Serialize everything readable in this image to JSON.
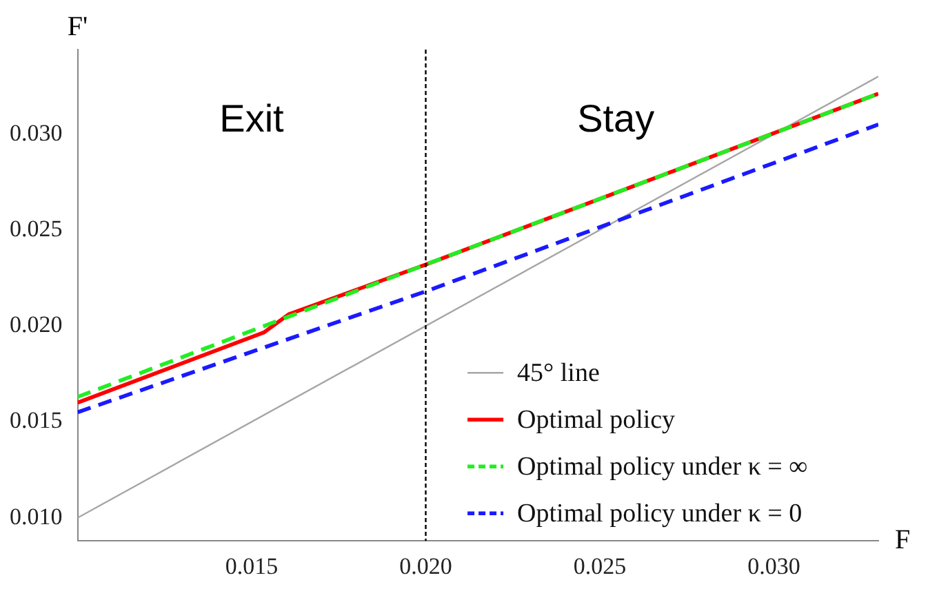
{
  "chart_data": {
    "type": "line",
    "xlabel": "F",
    "ylabel": "F'",
    "xlim": [
      0.01,
      0.033
    ],
    "ylim": [
      0.0088,
      0.0344
    ],
    "xticks": [
      {
        "value": 0.015,
        "label": "0.015"
      },
      {
        "value": 0.02,
        "label": "0.020"
      },
      {
        "value": 0.025,
        "label": "0.025"
      },
      {
        "value": 0.03,
        "label": "0.030"
      }
    ],
    "yticks": [
      {
        "value": 0.01,
        "label": "0.010"
      },
      {
        "value": 0.015,
        "label": "0.015"
      },
      {
        "value": 0.02,
        "label": "0.020"
      },
      {
        "value": 0.025,
        "label": "0.025"
      },
      {
        "value": 0.03,
        "label": "0.030"
      }
    ],
    "grid": false,
    "legend": "bottom right",
    "marker": "none",
    "series": [
      {
        "name": "45° line",
        "color": "#a6a6a6",
        "line_style": "solid",
        "x": [
          0.01,
          0.033
        ],
        "values": [
          0.01,
          0.033
        ]
      },
      {
        "name": "Optimal policy",
        "color": "#ff0000",
        "line_style": "solid",
        "x": [
          0.01,
          0.01535,
          0.01606,
          0.02,
          0.033
        ],
        "values": [
          0.016,
          0.01966,
          0.0206,
          0.0232,
          0.0321
        ]
      },
      {
        "name": "Optimal policy under κ = ∞",
        "color": "#22ee22",
        "line_style": "dashed",
        "x": [
          0.01,
          0.02,
          0.033
        ],
        "values": [
          0.0163,
          0.0232,
          0.0321
        ]
      },
      {
        "name": "Optimal policy under κ = 0",
        "color": "#1a1aff",
        "line_style": "dashed",
        "x": [
          0.01,
          0.02,
          0.033
        ],
        "values": [
          0.0155,
          0.0218,
          0.0305
        ]
      }
    ],
    "ref_lines": [
      {
        "axis": "x",
        "value": 0.02,
        "color": "#000000",
        "line_style": "dotted"
      }
    ],
    "annotations": [
      "Exit",
      "Stay"
    ]
  }
}
